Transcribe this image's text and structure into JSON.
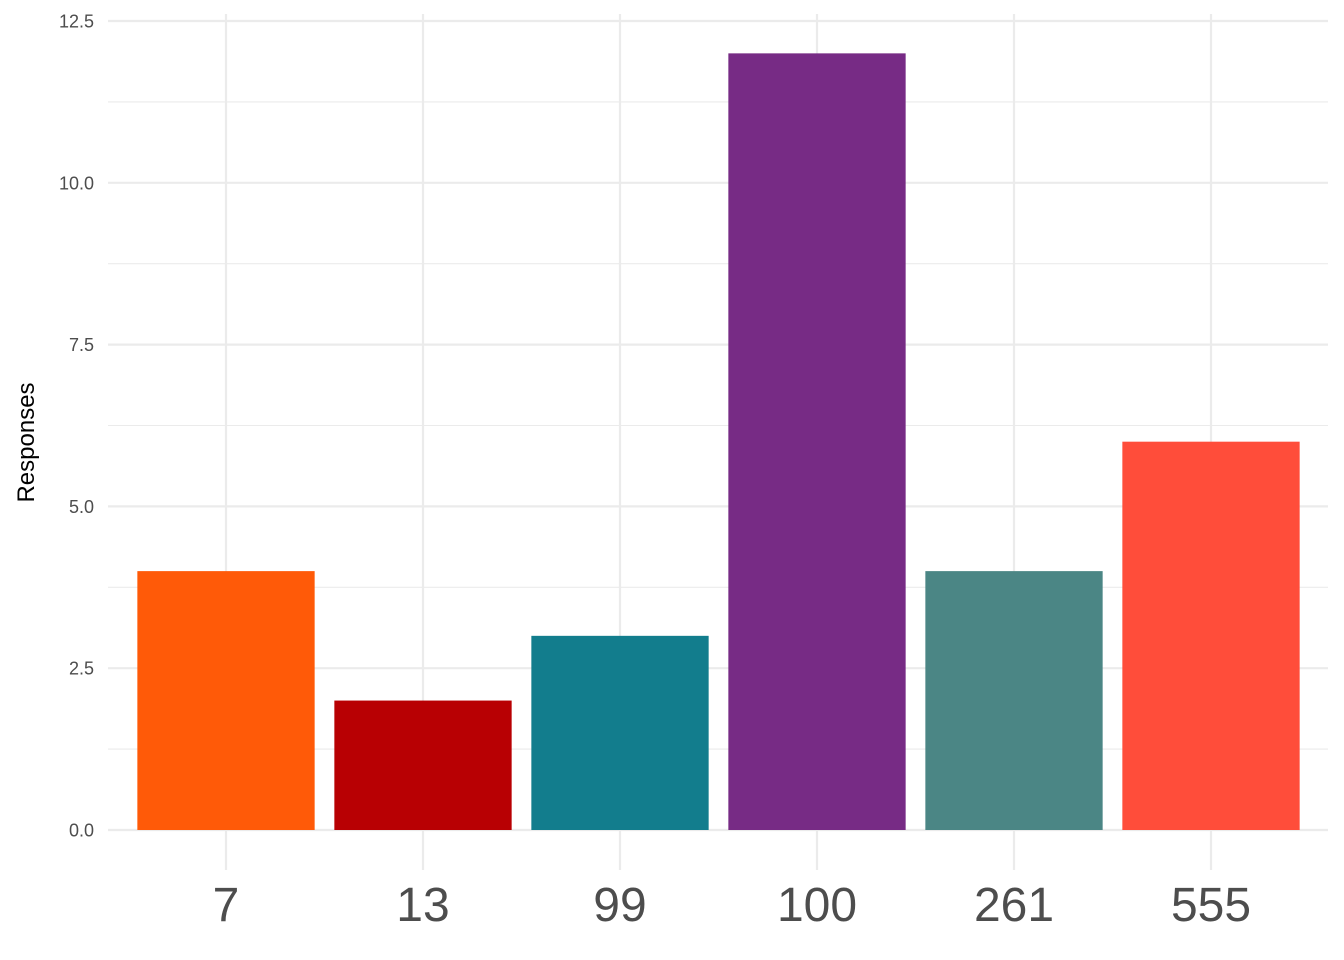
{
  "chart_data": {
    "type": "bar",
    "categories": [
      "7",
      "13",
      "99",
      "100",
      "261",
      "555"
    ],
    "values": [
      4,
      2,
      3,
      12,
      4,
      6
    ],
    "colors": [
      "#FF5A08",
      "#B80003",
      "#127D8D",
      "#772B85",
      "#4B8685",
      "#FF4D3A"
    ],
    "title": "",
    "xlabel": "",
    "ylabel": "Responses",
    "ylim": [
      0,
      12.5
    ],
    "yticks": [
      0,
      2.5,
      5,
      7.5,
      10,
      12.5
    ],
    "ytick_labels": [
      "0.0",
      "2.5",
      "5.0",
      "7.5",
      "10.0",
      "12.5"
    ],
    "grid": true,
    "legend": "none"
  }
}
